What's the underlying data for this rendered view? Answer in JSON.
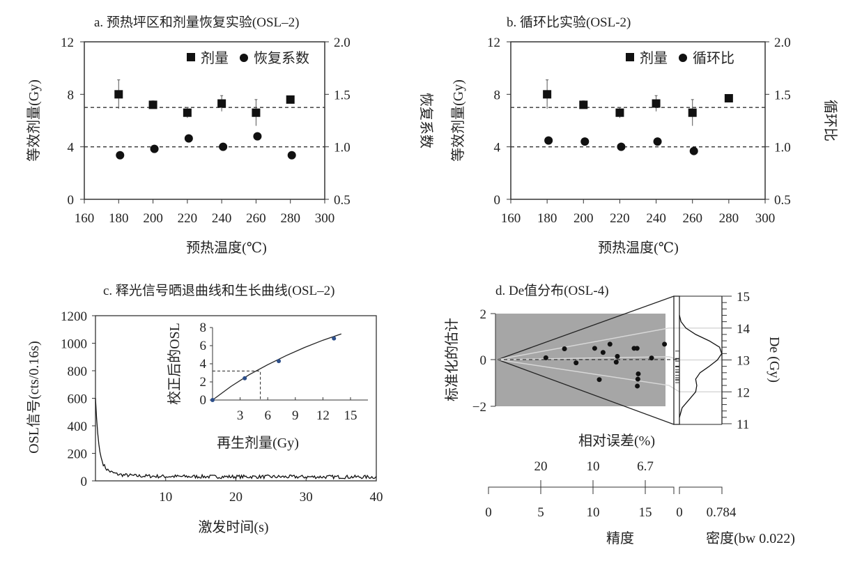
{
  "chart_data": [
    {
      "type": "scatter",
      "title": "a. 预热坪区和剂量恢复实验(OSL–2)",
      "xlabel": "预热温度(℃)",
      "ylabel": "等效剂量(Gy)",
      "ylabel_right": "恢复系数",
      "xlim": [
        160,
        300
      ],
      "ylim": [
        0,
        12
      ],
      "ylim_right": [
        0.5,
        2.0
      ],
      "xticks": [
        "160",
        "180",
        "200",
        "220",
        "240",
        "260",
        "280",
        "300"
      ],
      "yticks": [
        "0",
        "4",
        "8",
        "12"
      ],
      "yticks_right": [
        "0.5",
        "1.0",
        "1.5",
        "2.0"
      ],
      "legend": [
        "剂量",
        "恢复系数"
      ],
      "legend_position": "top-right",
      "reference_lines": {
        "dose": 7,
        "ratio": 1.0
      },
      "series": [
        {
          "name": "剂量",
          "marker": "square",
          "x": [
            180,
            200,
            220,
            240,
            260,
            280
          ],
          "y": [
            8.0,
            7.2,
            6.6,
            7.3,
            6.6,
            7.6
          ],
          "err": [
            1.1,
            0.3,
            0.4,
            0.6,
            1.0,
            0.0
          ]
        },
        {
          "name": "恢复系数",
          "marker": "circle",
          "axis": "right",
          "x": [
            180,
            200,
            220,
            240,
            260,
            280
          ],
          "y": [
            0.92,
            0.98,
            1.08,
            1.0,
            1.1,
            0.92
          ]
        }
      ]
    },
    {
      "type": "scatter",
      "title": "b. 循环比实验(OSL-2)",
      "xlabel": "预热温度(℃)",
      "ylabel": "等效剂量(Gy)",
      "ylabel_right": "循环比",
      "xlim": [
        160,
        300
      ],
      "ylim": [
        0,
        12
      ],
      "ylim_right": [
        0.5,
        2.0
      ],
      "xticks": [
        "160",
        "180",
        "200",
        "220",
        "240",
        "260",
        "280",
        "300"
      ],
      "yticks": [
        "0",
        "4",
        "8",
        "12"
      ],
      "yticks_right": [
        "0.5",
        "1.0",
        "1.5",
        "2.0"
      ],
      "legend": [
        "剂量",
        "循环比"
      ],
      "legend_position": "top-right",
      "reference_lines": {
        "dose": 7,
        "ratio": 1.0
      },
      "series": [
        {
          "name": "剂量",
          "marker": "square",
          "x": [
            180,
            200,
            220,
            240,
            260,
            280
          ],
          "y": [
            8.0,
            7.2,
            6.6,
            7.3,
            6.6,
            7.7
          ],
          "err": [
            1.1,
            0.3,
            0.4,
            0.6,
            1.0,
            0.0
          ]
        },
        {
          "name": "循环比",
          "marker": "circle",
          "axis": "right",
          "x": [
            180,
            200,
            220,
            240,
            260
          ],
          "y": [
            1.06,
            1.05,
            1.0,
            1.05,
            0.96
          ]
        }
      ]
    },
    {
      "type": "line",
      "title": "c. 释光信号晒退曲线和生长曲线(OSL–2)",
      "xlabel": "激发时间(s)",
      "ylabel": "OSL信号(cts/0.16s)",
      "xlim": [
        0,
        40
      ],
      "ylim": [
        0,
        1200
      ],
      "xticks": [
        "10",
        "20",
        "30",
        "40"
      ],
      "yticks": [
        "0",
        "200",
        "400",
        "600",
        "800",
        "1000",
        "1200"
      ],
      "decay": {
        "t": [
          0,
          0.2,
          0.4,
          0.6,
          0.8,
          1.0,
          1.3,
          1.6,
          2,
          2.5,
          3,
          4,
          6,
          10,
          20,
          30,
          40
        ],
        "y": [
          600,
          420,
          300,
          220,
          170,
          135,
          105,
          85,
          70,
          58,
          50,
          42,
          36,
          32,
          30,
          29,
          28
        ]
      },
      "inset": {
        "xlabel": "再生剂量(Gy)",
        "ylabel": "校正后的OSL",
        "xlim": [
          0,
          16
        ],
        "ylim": [
          0,
          8
        ],
        "xticks": [
          "3",
          "6",
          "9",
          "12",
          "15"
        ],
        "yticks": [
          "0",
          "2",
          "4",
          "6",
          "8"
        ],
        "points": {
          "x": [
            0,
            3.5,
            7.2,
            13.2
          ],
          "y": [
            0,
            2.4,
            4.3,
            6.8
          ]
        },
        "fit": {
          "x": [
            0,
            2,
            4,
            6,
            8,
            10,
            12,
            14
          ],
          "y": [
            0,
            1.5,
            2.8,
            3.9,
            4.9,
            5.8,
            6.6,
            7.3
          ]
        },
        "natural": {
          "signal": 3.2,
          "dose": 5.2
        }
      }
    },
    {
      "type": "scatter",
      "subtype": "radial",
      "title": "d. De值分布(OSL-4)",
      "ylabel": "标准化的估计",
      "ylabel_right": "De (Gy)",
      "xlabel_top": "相对误差(%)",
      "xlabel": "精度",
      "xlabel_density": "密度(bw 0.022)",
      "yticks": [
        "2",
        "0",
        "−2"
      ],
      "de_ticks": [
        "11",
        "12",
        "13",
        "14",
        "15"
      ],
      "relerr_ticks": [
        "20",
        "10",
        "6.7"
      ],
      "precision_ticks": [
        "0",
        "5",
        "10",
        "15"
      ],
      "density_ticks": [
        "0",
        "0.784"
      ],
      "points": {
        "precision": [
          5.49,
          7.27,
          8.38,
          10.16,
          10.96,
          11.62,
          12.33,
          12.22,
          10.6,
          13.93,
          14.22,
          14.33,
          14.29,
          14.24,
          15.6,
          16.84
        ],
        "z": [
          0.08,
          0.47,
          -0.14,
          0.49,
          0.31,
          0.67,
          0.14,
          -0.11,
          -0.87,
          0.49,
          0.49,
          -0.62,
          -0.85,
          -1.15,
          0.07,
          0.67
        ]
      },
      "density": {
        "de": [
          11.2,
          11.5,
          11.8,
          12.0,
          12.2,
          12.4,
          12.6,
          12.8,
          13.0,
          13.2,
          13.4,
          13.6,
          13.8,
          14.0,
          14.2,
          14.4
        ],
        "d": [
          0.0,
          0.05,
          0.2,
          0.3,
          0.32,
          0.3,
          0.38,
          0.55,
          0.7,
          0.78,
          0.74,
          0.55,
          0.3,
          0.12,
          0.03,
          0.0
        ]
      },
      "central_de": 12.9,
      "guide_de": [
        12,
        13,
        14
      ]
    }
  ]
}
